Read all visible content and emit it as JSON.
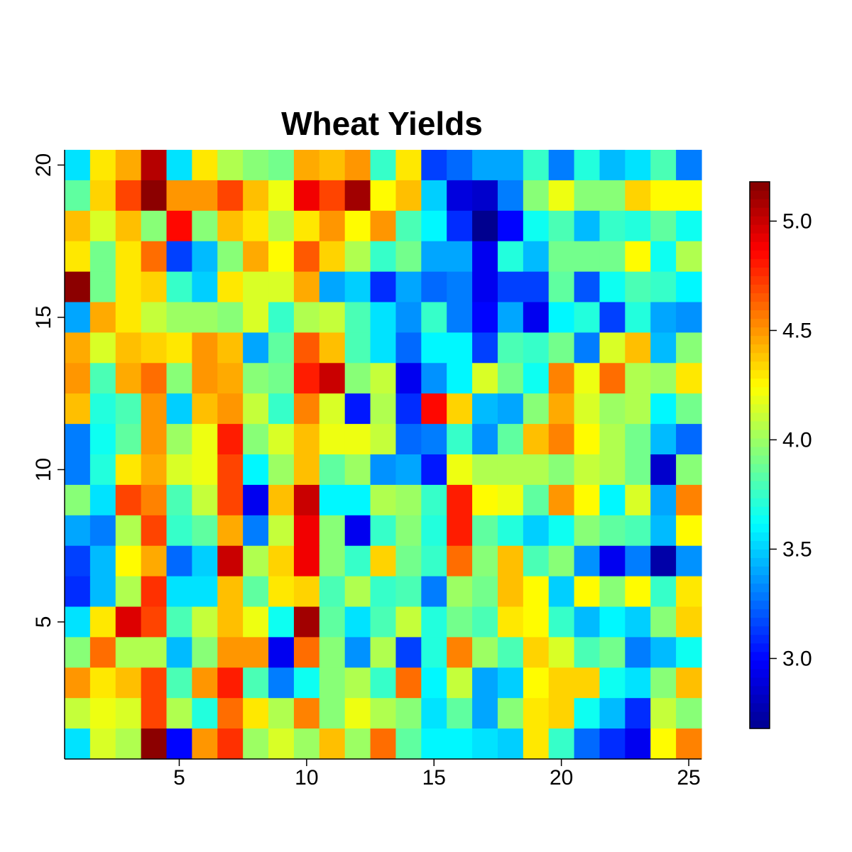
{
  "chart_data": {
    "type": "heatmap",
    "title": "Wheat Yields",
    "xlabel": "",
    "ylabel": "",
    "x_range": [
      0.5,
      25.5
    ],
    "y_range": [
      0.5,
      20.5
    ],
    "x_ticks": [
      5,
      10,
      15,
      20,
      25
    ],
    "y_ticks": [
      5,
      10,
      15,
      20
    ],
    "colorbar": {
      "range": [
        2.68,
        5.18
      ],
      "ticks": [
        3.0,
        3.5,
        4.0,
        4.5,
        5.0
      ],
      "tick_labels": [
        "3.0",
        "3.5",
        "4.0",
        "4.5",
        "5.0"
      ],
      "colormap": "jet (dark blue → blue → cyan → yellow → red → dark red)"
    },
    "columns": 25,
    "rows": 20,
    "values_rows_top_to_bottom": [
      [
        3.55,
        4.3,
        4.45,
        5.05,
        3.55,
        4.3,
        4.05,
        3.95,
        3.9,
        4.45,
        4.4,
        4.5,
        3.75,
        4.3,
        3.15,
        3.25,
        3.4,
        3.4,
        3.75,
        3.3,
        3.7,
        3.45,
        3.55,
        3.8,
        3.3
      ],
      [
        3.85,
        4.35,
        4.7,
        5.15,
        4.5,
        4.5,
        4.7,
        4.4,
        4.2,
        4.9,
        4.7,
        5.1,
        4.25,
        4.4,
        3.5,
        2.9,
        2.85,
        3.3,
        3.95,
        4.2,
        3.95,
        3.95,
        4.35,
        4.25,
        4.25
      ],
      [
        4.4,
        4.15,
        4.4,
        3.95,
        4.85,
        3.95,
        4.4,
        4.3,
        4.05,
        4.3,
        4.5,
        4.25,
        4.5,
        3.8,
        3.6,
        3.1,
        2.68,
        3.0,
        3.65,
        3.8,
        3.45,
        3.75,
        3.7,
        3.85,
        3.65
      ],
      [
        4.3,
        3.9,
        4.3,
        4.6,
        3.15,
        3.45,
        3.95,
        4.45,
        4.25,
        4.65,
        4.35,
        4.05,
        3.75,
        3.9,
        3.4,
        3.4,
        2.95,
        3.7,
        3.45,
        3.9,
        3.9,
        3.9,
        4.25,
        3.65,
        4.05
      ],
      [
        5.15,
        3.9,
        4.3,
        4.35,
        3.75,
        3.5,
        4.3,
        4.15,
        4.15,
        4.45,
        3.4,
        3.5,
        3.1,
        3.4,
        3.25,
        3.3,
        2.95,
        3.15,
        3.15,
        3.85,
        3.2,
        3.65,
        3.8,
        3.75,
        3.6
      ],
      [
        3.4,
        4.45,
        4.3,
        4.1,
        4.0,
        4.0,
        3.95,
        4.15,
        3.75,
        4.05,
        4.1,
        3.8,
        3.55,
        3.35,
        3.75,
        3.3,
        3.0,
        3.4,
        2.95,
        3.6,
        3.7,
        3.15,
        3.7,
        3.4,
        3.35
      ],
      [
        4.45,
        4.15,
        4.4,
        4.35,
        4.3,
        4.5,
        4.4,
        3.4,
        3.85,
        4.65,
        4.4,
        3.8,
        3.55,
        3.25,
        3.6,
        3.6,
        3.15,
        3.8,
        3.75,
        3.9,
        3.3,
        4.15,
        4.4,
        3.45,
        3.95
      ],
      [
        4.5,
        3.8,
        4.45,
        4.6,
        3.95,
        4.5,
        4.45,
        3.95,
        3.9,
        4.8,
        5.0,
        3.95,
        4.1,
        2.95,
        3.35,
        3.6,
        4.15,
        3.9,
        3.65,
        4.55,
        4.2,
        4.6,
        4.05,
        4.0,
        4.3
      ],
      [
        4.4,
        3.7,
        3.8,
        4.5,
        3.5,
        4.4,
        4.5,
        4.1,
        3.75,
        4.55,
        4.15,
        3.05,
        4.05,
        3.1,
        4.85,
        4.35,
        3.45,
        3.4,
        3.95,
        4.45,
        4.15,
        4.0,
        4.05,
        3.6,
        3.9
      ],
      [
        3.3,
        3.65,
        3.85,
        4.5,
        4.0,
        4.2,
        4.8,
        3.95,
        4.15,
        4.4,
        4.2,
        4.2,
        4.1,
        3.25,
        3.3,
        3.75,
        3.35,
        3.85,
        4.4,
        4.55,
        4.25,
        4.05,
        3.9,
        3.45,
        3.25
      ],
      [
        3.3,
        3.7,
        4.3,
        4.45,
        4.15,
        4.2,
        4.7,
        3.6,
        4.0,
        4.4,
        3.85,
        4.0,
        3.35,
        3.4,
        3.05,
        4.2,
        4.05,
        4.05,
        4.05,
        3.95,
        4.1,
        4.05,
        3.9,
        2.85,
        3.95
      ],
      [
        3.95,
        3.55,
        4.7,
        4.55,
        3.8,
        4.1,
        4.7,
        2.95,
        4.4,
        5.0,
        3.6,
        3.6,
        4.05,
        4.0,
        3.75,
        4.8,
        4.25,
        4.2,
        3.85,
        4.5,
        4.25,
        3.6,
        4.15,
        3.4,
        4.55
      ],
      [
        3.4,
        3.3,
        4.05,
        4.7,
        3.75,
        3.85,
        4.45,
        3.3,
        4.1,
        4.9,
        3.95,
        2.95,
        3.75,
        3.95,
        3.7,
        4.8,
        3.85,
        3.7,
        3.5,
        3.65,
        3.95,
        3.85,
        3.8,
        3.45,
        4.25
      ],
      [
        3.15,
        3.45,
        4.25,
        4.45,
        3.25,
        3.5,
        5.0,
        4.05,
        4.35,
        4.9,
        3.95,
        3.75,
        4.35,
        3.9,
        3.75,
        4.6,
        3.95,
        4.4,
        3.8,
        3.95,
        3.35,
        2.95,
        3.3,
        2.75,
        3.35
      ],
      [
        3.1,
        3.45,
        4.05,
        4.75,
        3.55,
        3.55,
        4.4,
        3.85,
        4.3,
        4.35,
        3.8,
        4.05,
        3.75,
        3.8,
        3.3,
        4.0,
        3.9,
        4.4,
        4.25,
        3.5,
        4.25,
        3.95,
        4.25,
        3.75,
        4.3
      ],
      [
        3.55,
        4.3,
        4.95,
        4.7,
        3.8,
        4.1,
        4.4,
        4.2,
        3.65,
        5.1,
        3.85,
        3.55,
        3.8,
        4.1,
        3.7,
        3.9,
        3.8,
        4.3,
        4.25,
        3.75,
        3.45,
        3.6,
        3.5,
        3.95,
        4.35
      ],
      [
        3.95,
        4.6,
        4.05,
        4.05,
        3.45,
        3.95,
        4.5,
        4.5,
        2.95,
        4.6,
        3.95,
        3.35,
        4.05,
        3.15,
        3.7,
        4.55,
        4.0,
        3.8,
        4.35,
        4.15,
        3.8,
        3.9,
        3.3,
        3.45,
        3.65
      ],
      [
        4.5,
        4.3,
        4.4,
        4.7,
        3.8,
        4.5,
        4.8,
        3.8,
        3.3,
        3.65,
        3.95,
        4.05,
        3.75,
        4.6,
        3.6,
        4.1,
        3.4,
        3.5,
        4.25,
        4.35,
        4.35,
        3.65,
        3.55,
        3.95,
        4.4
      ],
      [
        4.1,
        4.2,
        4.15,
        4.7,
        4.05,
        3.7,
        4.6,
        4.3,
        4.05,
        4.55,
        3.95,
        4.2,
        4.05,
        3.95,
        3.55,
        3.85,
        3.4,
        3.95,
        4.3,
        4.35,
        3.65,
        3.45,
        3.1,
        4.1,
        3.95
      ],
      [
        3.55,
        4.15,
        4.05,
        5.15,
        3.0,
        4.5,
        4.75,
        4.0,
        4.15,
        4.0,
        4.4,
        4.0,
        4.6,
        3.85,
        3.6,
        3.6,
        3.55,
        3.5,
        4.3,
        3.75,
        3.25,
        3.1,
        2.95,
        4.25,
        4.55
      ]
    ]
  }
}
